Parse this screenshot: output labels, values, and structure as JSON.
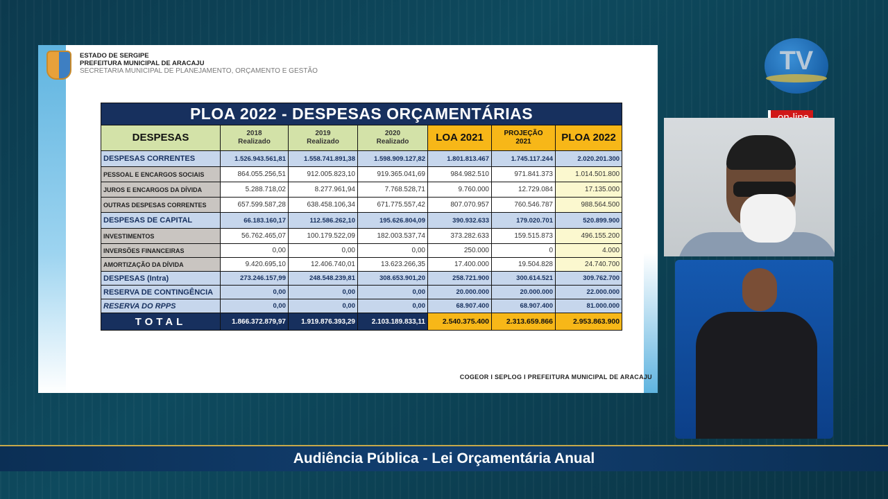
{
  "slide": {
    "header": {
      "line1": "ESTADO DE SERGIPE",
      "line2": "PREFEITURA MUNICIPAL DE ARACAJU",
      "line3": "SECRETARIA MUNICIPAL DE PLANEJAMENTO, ORÇAMENTO E GESTÃO"
    },
    "footer": "COGEOR I  SEPLOG  I   PREFEITURA MUNICIPAL DE ARACAJU",
    "table": {
      "title": "PLOA 2022  -  DESPESAS ORÇAMENTÁRIAS",
      "columns": [
        {
          "line1": "DESPESAS",
          "line2": ""
        },
        {
          "line1": "2018",
          "line2": "Realizado"
        },
        {
          "line1": "2019",
          "line2": "Realizado"
        },
        {
          "line1": "2020",
          "line2": "Realizado"
        },
        {
          "line1": "LOA 2021",
          "line2": ""
        },
        {
          "line1": "PROJEÇÃO",
          "line2": "2021"
        },
        {
          "line1": "PLOA 2022",
          "line2": ""
        }
      ],
      "rows": [
        {
          "label": "DESPESAS CORRENTES",
          "values": [
            "1.526.943.561,81",
            "1.558.741.891,38",
            "1.598.909.127,82",
            "1.801.813.467",
            "1.745.117.244",
            "2.020.201.300"
          ]
        },
        {
          "label": "PESSOAL E ENCARGOS SOCIAIS",
          "values": [
            "864.055.256,51",
            "912.005.823,10",
            "919.365.041,69",
            "984.982.510",
            "971.841.373",
            "1.014.501.800"
          ]
        },
        {
          "label": "JUROS E ENCARGOS DA DÍVIDA",
          "values": [
            "5.288.718,02",
            "8.277.961,94",
            "7.768.528,71",
            "9.760.000",
            "12.729.084",
            "17.135.000"
          ]
        },
        {
          "label": "OUTRAS DESPESAS CORRENTES",
          "values": [
            "657.599.587,28",
            "638.458.106,34",
            "671.775.557,42",
            "807.070.957",
            "760.546.787",
            "988.564.500"
          ]
        },
        {
          "label": "DESPESAS DE CAPITAL",
          "values": [
            "66.183.160,17",
            "112.586.262,10",
            "195.626.804,09",
            "390.932.633",
            "179.020.701",
            "520.899.900"
          ]
        },
        {
          "label": "INVESTIMENTOS",
          "values": [
            "56.762.465,07",
            "100.179.522,09",
            "182.003.537,74",
            "373.282.633",
            "159.515.873",
            "496.155.200"
          ]
        },
        {
          "label": "INVERSÕES FINANCEIRAS",
          "values": [
            "0,00",
            "0,00",
            "0,00",
            "250.000",
            "0",
            "4.000"
          ]
        },
        {
          "label": "AMORTIZAÇÃO DA DÍVIDA",
          "values": [
            "9.420.695,10",
            "12.406.740,01",
            "13.623.266,35",
            "17.400.000",
            "19.504.828",
            "24.740.700"
          ]
        },
        {
          "label": "DESPESAS (Intra)",
          "values": [
            "273.246.157,99",
            "248.548.239,81",
            "308.653.901,20",
            "258.721.900",
            "300.614.521",
            "309.762.700"
          ]
        },
        {
          "label": "RESERVA DE CONTINGÊNCIA",
          "values": [
            "0,00",
            "0,00",
            "0,00",
            "20.000.000",
            "20.000.000",
            "22.000.000"
          ]
        },
        {
          "label": "RESERVA DO RPPS",
          "values": [
            "0,00",
            "0,00",
            "0,00",
            "68.907.400",
            "68.907.400",
            "81.000.000"
          ]
        }
      ],
      "total": {
        "label": "TOTAL",
        "values": [
          "1.866.372.879,97",
          "1.919.876.393,29",
          "2.103.189.833,11",
          "2.540.375.400",
          "2.313.659.866",
          "2.953.863.900"
        ]
      }
    }
  },
  "broadcast": {
    "logo": "TV",
    "online_badge": "on-line",
    "banner": "Audiência Pública - Lei Orçamentária Anual"
  },
  "colors": {
    "navy": "#17305e",
    "orange": "#f7b718",
    "green": "#d3e2a8",
    "blue_row": "#c6d6ec",
    "badge_red": "#d01818"
  }
}
